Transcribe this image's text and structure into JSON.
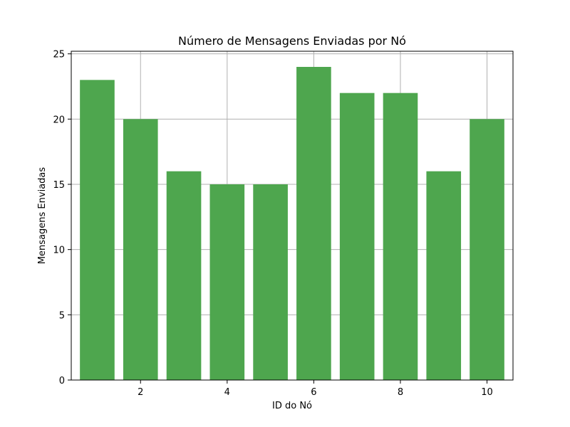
{
  "chart_data": {
    "type": "bar",
    "title": "Número de Mensagens Enviadas por Nó",
    "xlabel": "ID do Nó",
    "ylabel": "Mensagens Enviadas",
    "x": [
      1,
      2,
      3,
      4,
      5,
      6,
      7,
      8,
      9,
      10
    ],
    "values": [
      23,
      20,
      16,
      15,
      15,
      24,
      22,
      22,
      16,
      20
    ],
    "xlim": [
      0.4,
      10.6
    ],
    "ylim": [
      0,
      25.2
    ],
    "xticks": [
      2,
      4,
      6,
      8,
      10
    ],
    "yticks": [
      0,
      5,
      10,
      15,
      20,
      25
    ],
    "grid": true,
    "bar_color": "#4ea64e",
    "grid_color": "#b0b0b0"
  }
}
